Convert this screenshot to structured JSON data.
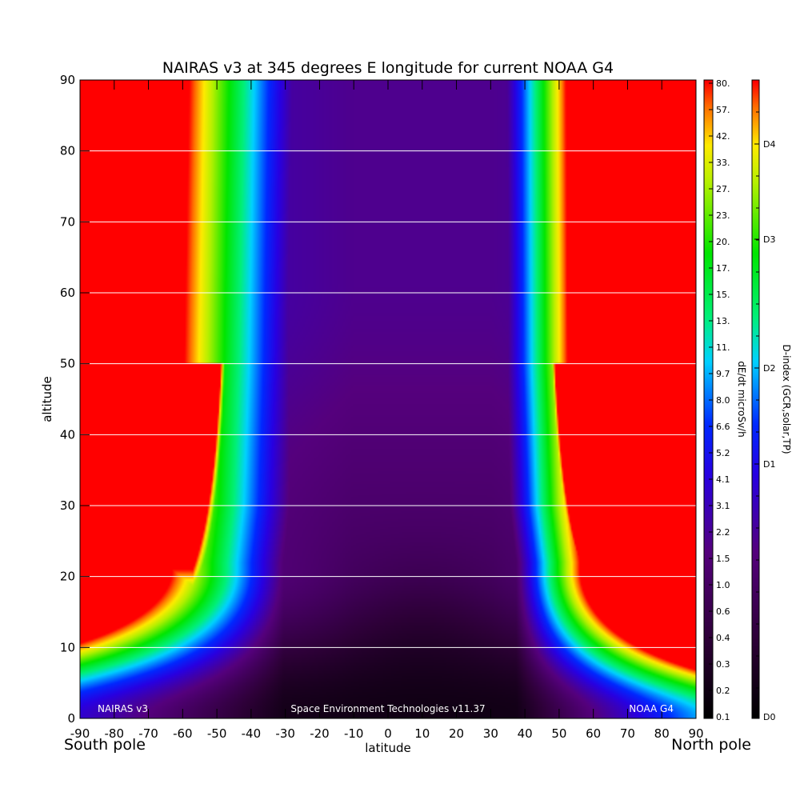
{
  "chart_data": {
    "type": "heatmap",
    "title": "NAIRAS v3 at 345 degrees E longitude for current NOAA G4",
    "xlabel": "latitude",
    "ylabel": "altitude",
    "x_range": [
      -90,
      90
    ],
    "y_range": [
      0,
      90
    ],
    "x_ticks": [
      "-90",
      "-80",
      "-70",
      "-60",
      "-50",
      "-40",
      "-30",
      "-20",
      "-10",
      "0",
      "10",
      "20",
      "30",
      "40",
      "50",
      "60",
      "70",
      "80",
      "90"
    ],
    "y_ticks": [
      "0",
      "10",
      "20",
      "30",
      "40",
      "50",
      "60",
      "70",
      "80",
      "90"
    ],
    "grid": "horizontal lines at each y tick above 0",
    "x_end_labels": {
      "left": "South pole",
      "right": "North pole"
    },
    "footer_labels": {
      "left": "NAIRAS v3",
      "center": "Space Environment Technologies v11.37",
      "right": "NOAA G4"
    },
    "dose_colorbar": {
      "label": "dE/dt microSv/h",
      "ticks": [
        "80.",
        "57.",
        "42.",
        "33.",
        "27.",
        "23.",
        "20.",
        "17.",
        "15.",
        "13.",
        "11.",
        "9.7",
        "8.0",
        "6.6",
        "5.2",
        "4.1",
        "3.1",
        "2.2",
        "1.5",
        "1.0",
        "0.6",
        "0.4",
        "0.3",
        "0.2",
        "0.1"
      ]
    },
    "dindex_colorbar": {
      "label": "D-index (GCR,solar,TP)",
      "ticks": [
        "D4",
        "D3",
        "D2",
        "D1",
        "D0"
      ]
    },
    "field_description": {
      "south_saturation_edge_lat_at_alt": [
        [
          22,
          -63
        ],
        [
          30,
          -61
        ],
        [
          50,
          -59.5
        ],
        [
          90,
          -58
        ]
      ],
      "north_saturation_edge_lat_at_alt": [
        [
          22,
          56
        ],
        [
          30,
          54
        ],
        [
          50,
          52.5
        ],
        [
          90,
          52
        ]
      ],
      "low_altitude_saturation_starts_km": 21,
      "minimum_region_lat_range": [
        -10,
        30
      ],
      "minimum_region_alt_range": [
        0,
        20
      ]
    }
  }
}
